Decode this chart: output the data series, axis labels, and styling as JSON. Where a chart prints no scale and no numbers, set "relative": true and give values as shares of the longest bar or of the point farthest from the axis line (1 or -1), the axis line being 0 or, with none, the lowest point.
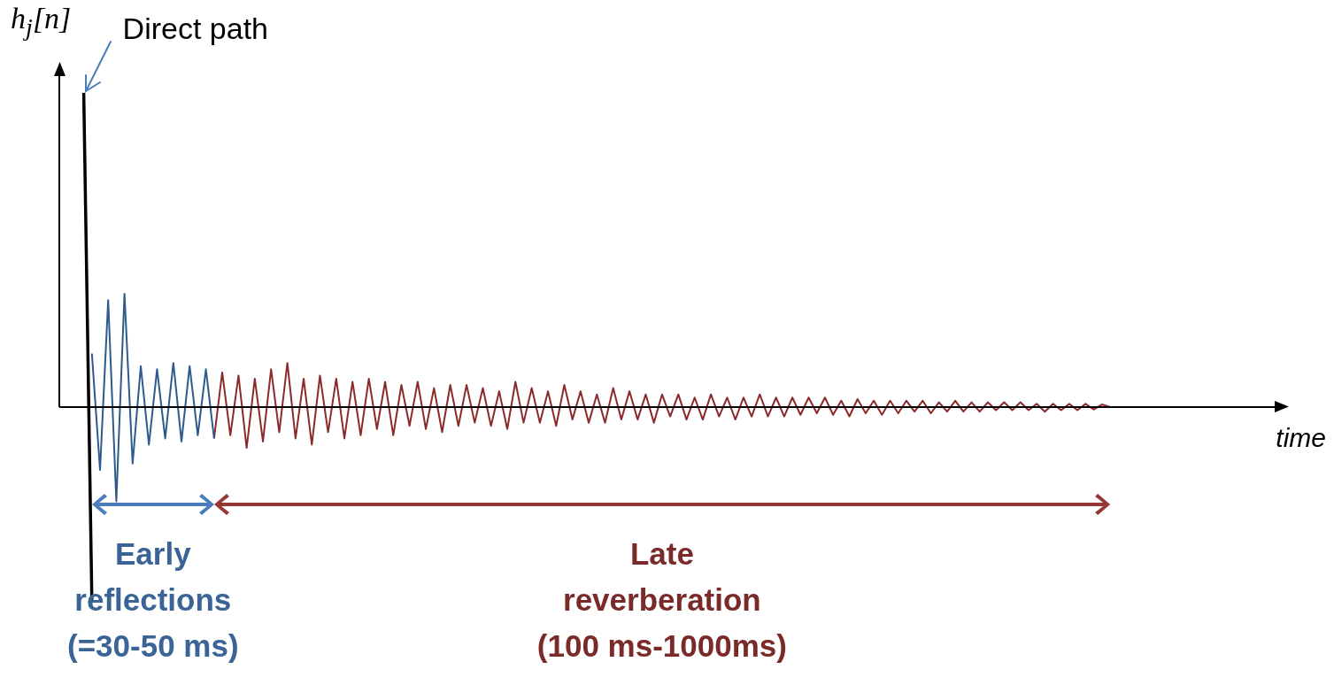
{
  "chart_data": {
    "type": "line",
    "relative": true,
    "ylabel": "h$_{j}$[n]",
    "xlabel": "time",
    "legend": false,
    "annotations": [
      "Direct path",
      "Early reflections (=30-50 ms)",
      "Late reverberation (100 ms-1000ms)"
    ],
    "categories": [
      null,
      null,
      null,
      null,
      null,
      null,
      null,
      null,
      null,
      null,
      null,
      null,
      null,
      null,
      null,
      null,
      null,
      null,
      null,
      null,
      null,
      null,
      null,
      null,
      null,
      null,
      null,
      null,
      null,
      null,
      null,
      null,
      null,
      null,
      null,
      null,
      null,
      null,
      null,
      null,
      null,
      null,
      null,
      null,
      null,
      null,
      null,
      null,
      null,
      null,
      null,
      null,
      null,
      null,
      null,
      null,
      null,
      null,
      null,
      null,
      null,
      null,
      null,
      null,
      null,
      null,
      null,
      null,
      null,
      null,
      null,
      null,
      null,
      null,
      null,
      null,
      null,
      null,
      null,
      null,
      null,
      null,
      null,
      null,
      null,
      null,
      null,
      null,
      null,
      null,
      null,
      null,
      null,
      null,
      null,
      null,
      null,
      null,
      null,
      null,
      null,
      null,
      null,
      null,
      null,
      null,
      null,
      null,
      null,
      null,
      null,
      null,
      null,
      null,
      null,
      null,
      null,
      null,
      null,
      null,
      null,
      null,
      null,
      null,
      null,
      null,
      null,
      null,
      null,
      null,
      null,
      null,
      null,
      null,
      null,
      null,
      null,
      null,
      null,
      null,
      null,
      null,
      null,
      null,
      null,
      null,
      null,
      null,
      null,
      null
    ],
    "series": [
      {
        "color": "#000000",
        "values": [
          null,
          null,
          null,
          1,
          -0.62,
          null,
          null,
          null,
          null,
          null,
          null,
          null,
          null,
          null,
          null,
          null,
          null,
          null,
          null,
          null,
          null,
          null,
          null,
          null,
          null,
          null,
          null,
          null,
          null,
          null,
          null,
          null,
          null,
          null,
          null,
          null,
          null,
          null,
          null,
          null,
          null,
          null,
          null,
          null,
          null,
          null,
          null,
          null,
          null,
          null,
          null,
          null,
          null,
          null,
          null,
          null,
          null,
          null,
          null,
          null,
          null,
          null,
          null,
          null,
          null,
          null,
          null,
          null,
          null,
          null,
          null,
          null,
          null,
          null,
          null,
          null,
          null,
          null,
          null,
          null,
          null,
          null,
          null,
          null,
          null,
          null,
          null,
          null,
          null,
          null,
          null,
          null,
          null,
          null,
          null,
          null,
          null,
          null,
          null,
          null,
          null,
          null,
          null,
          null,
          null,
          null,
          null,
          null,
          null,
          null,
          null,
          null,
          null,
          null,
          null,
          null,
          null,
          null,
          null,
          null,
          null,
          null,
          null,
          null,
          null,
          null,
          null,
          null,
          null,
          null,
          null,
          null,
          null,
          null,
          null,
          null,
          null,
          null,
          null,
          null,
          null,
          null,
          null,
          null,
          null,
          null,
          null,
          null,
          null,
          null
        ]
      },
      {
        "color": "#2e5a8e",
        "values": [
          null,
          null,
          null,
          null,
          0.17,
          -0.2,
          0.34,
          -0.3,
          0.36,
          -0.18,
          0.13,
          -0.12,
          0.12,
          -0.1,
          0.14,
          -0.11,
          0.13,
          -0.09,
          0.12,
          -0.1,
          null,
          null,
          null,
          null,
          null,
          null,
          null,
          null,
          null,
          null,
          null,
          null,
          null,
          null,
          null,
          null,
          null,
          null,
          null,
          null,
          null,
          null,
          null,
          null,
          null,
          null,
          null,
          null,
          null,
          null,
          null,
          null,
          null,
          null,
          null,
          null,
          null,
          null,
          null,
          null,
          null,
          null,
          null,
          null,
          null,
          null,
          null,
          null,
          null,
          null,
          null,
          null,
          null,
          null,
          null,
          null,
          null,
          null,
          null,
          null,
          null,
          null,
          null,
          null,
          null,
          null,
          null,
          null,
          null,
          null,
          null,
          null,
          null,
          null,
          null,
          null,
          null,
          null,
          null,
          null,
          null,
          null,
          null,
          null,
          null,
          null,
          null,
          null,
          null,
          null,
          null,
          null,
          null,
          null,
          null,
          null,
          null,
          null,
          null,
          null,
          null,
          null,
          null,
          null,
          null,
          null,
          null,
          null,
          null,
          null,
          null,
          null,
          null,
          null,
          null,
          null,
          null,
          null,
          null,
          null,
          null,
          null,
          null,
          null,
          null,
          null,
          null,
          null,
          null,
          null
        ]
      },
      {
        "color": "#8b2a2a",
        "values": [
          null,
          null,
          null,
          null,
          null,
          null,
          null,
          null,
          null,
          null,
          null,
          null,
          null,
          null,
          null,
          null,
          null,
          null,
          null,
          -0.1,
          0.11,
          -0.09,
          0.1,
          -0.13,
          0.09,
          -0.11,
          0.12,
          -0.08,
          0.14,
          -0.1,
          0.09,
          -0.12,
          0.1,
          -0.08,
          0.09,
          -0.1,
          0.08,
          -0.09,
          0.09,
          -0.07,
          0.08,
          -0.09,
          0.07,
          -0.06,
          0.08,
          -0.07,
          0.06,
          -0.08,
          0.07,
          -0.06,
          0.07,
          -0.05,
          0.06,
          -0.06,
          0.05,
          -0.07,
          0.08,
          -0.05,
          0.06,
          -0.05,
          0.05,
          -0.06,
          0.07,
          -0.04,
          0.05,
          -0.05,
          0.04,
          -0.05,
          0.06,
          -0.04,
          0.05,
          -0.04,
          0.04,
          -0.05,
          0.04,
          -0.03,
          0.04,
          -0.04,
          0.03,
          -0.04,
          0.04,
          -0.03,
          0.03,
          -0.04,
          0.03,
          -0.03,
          0.04,
          -0.03,
          0.03,
          -0.03,
          0.03,
          -0.025,
          0.03,
          -0.02,
          0.03,
          -0.025,
          0.02,
          -0.03,
          0.025,
          -0.02,
          0.02,
          -0.025,
          0.02,
          -0.02,
          0.02,
          -0.015,
          0.02,
          -0.02,
          0.015,
          -0.015,
          0.02,
          -0.015,
          0.015,
          -0.015,
          0.015,
          -0.01,
          0.015,
          -0.01,
          0.015,
          -0.01,
          0.01,
          -0.015,
          0.01,
          -0.01,
          0.01,
          -0.01,
          0.01,
          -0.008,
          0.008,
          0,
          null,
          null,
          null,
          null,
          null,
          null,
          null,
          null,
          null,
          null,
          null,
          null,
          null,
          null,
          null,
          null,
          null,
          null,
          null,
          null
        ]
      }
    ]
  }
}
